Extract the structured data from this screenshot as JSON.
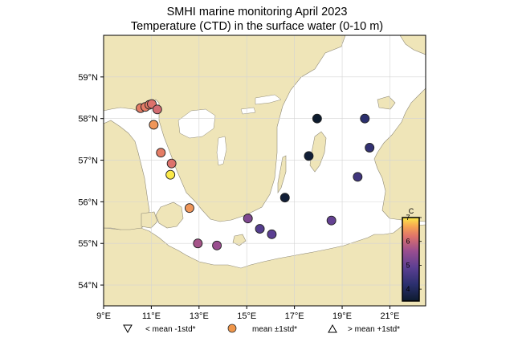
{
  "title_line1": "SMHI marine monitoring April 2023",
  "title_line2": "Temperature (CTD) in the surface water (0-10 m)",
  "map": {
    "lon_range": [
      9,
      22.5
    ],
    "lat_range": [
      53.5,
      60
    ],
    "x_ticks": [
      {
        "value": 9,
        "label": "9°E"
      },
      {
        "value": 11,
        "label": "11°E"
      },
      {
        "value": 13,
        "label": "13°E"
      },
      {
        "value": 15,
        "label": "15°E"
      },
      {
        "value": 17,
        "label": "17°E"
      },
      {
        "value": 19,
        "label": "19°E"
      },
      {
        "value": 21,
        "label": "21°E"
      }
    ],
    "y_ticks": [
      {
        "value": 54,
        "label": "54°N"
      },
      {
        "value": 55,
        "label": "55°N"
      },
      {
        "value": 56,
        "label": "56°N"
      },
      {
        "value": 57,
        "label": "57°N"
      },
      {
        "value": 58,
        "label": "58°N"
      },
      {
        "value": 59,
        "label": "59°N"
      }
    ],
    "land_color": "#efe5b8",
    "sea_color": "#ffffff",
    "grid": true
  },
  "colorbar": {
    "unit": "C",
    "range": [
      3.5,
      7
    ],
    "ticks": [
      {
        "value": 4,
        "label": "4"
      },
      {
        "value": 5,
        "label": "5"
      },
      {
        "value": 6,
        "label": "6"
      },
      {
        "value": 7,
        "label": "7"
      }
    ],
    "colormap": "plasma-like (dark navy to yellow)"
  },
  "stations": [
    {
      "lon": 10.55,
      "lat": 58.25,
      "temp": 6.3
    },
    {
      "lon": 10.75,
      "lat": 58.28,
      "temp": 6.3
    },
    {
      "lon": 10.92,
      "lat": 58.33,
      "temp": 6.3
    },
    {
      "lon": 11.02,
      "lat": 58.35,
      "temp": 6.2
    },
    {
      "lon": 11.25,
      "lat": 58.22,
      "temp": 6.1
    },
    {
      "lon": 11.1,
      "lat": 57.85,
      "temp": 6.5
    },
    {
      "lon": 11.4,
      "lat": 57.18,
      "temp": 6.3
    },
    {
      "lon": 11.85,
      "lat": 56.92,
      "temp": 6.2
    },
    {
      "lon": 11.8,
      "lat": 56.65,
      "temp": 7.0
    },
    {
      "lon": 12.6,
      "lat": 55.85,
      "temp": 6.5
    },
    {
      "lon": 12.95,
      "lat": 55.0,
      "temp": 5.7
    },
    {
      "lon": 13.75,
      "lat": 54.95,
      "temp": 5.6
    },
    {
      "lon": 15.05,
      "lat": 55.6,
      "temp": 5.3
    },
    {
      "lon": 15.55,
      "lat": 55.35,
      "temp": 4.8
    },
    {
      "lon": 16.05,
      "lat": 55.22,
      "temp": 4.9
    },
    {
      "lon": 16.6,
      "lat": 56.1,
      "temp": 3.6
    },
    {
      "lon": 17.6,
      "lat": 57.1,
      "temp": 3.6
    },
    {
      "lon": 17.95,
      "lat": 58.0,
      "temp": 3.5
    },
    {
      "lon": 18.55,
      "lat": 55.55,
      "temp": 5.0
    },
    {
      "lon": 19.65,
      "lat": 56.6,
      "temp": 4.5
    },
    {
      "lon": 19.95,
      "lat": 58.0,
      "temp": 4.2
    },
    {
      "lon": 20.15,
      "lat": 57.3,
      "temp": 4.3
    }
  ],
  "legend": [
    {
      "symbol": "triangle-down",
      "label": "< mean -1std*"
    },
    {
      "symbol": "circle",
      "label": "mean ±1std*",
      "color": "#f0964a"
    },
    {
      "symbol": "triangle-up",
      "label": "> mean +1std*"
    }
  ]
}
